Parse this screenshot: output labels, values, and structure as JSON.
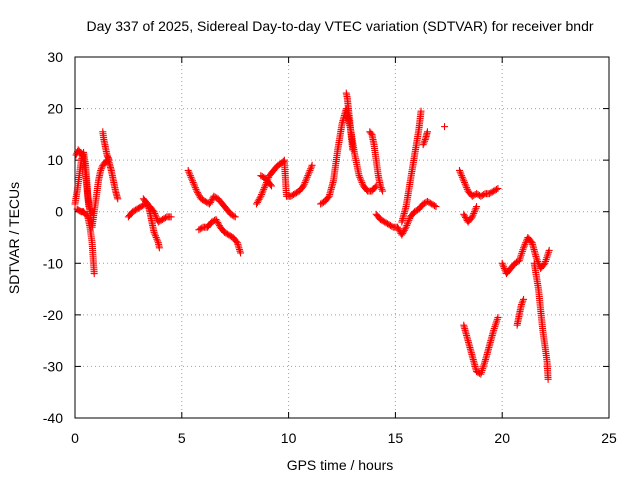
{
  "chart_data": {
    "type": "scatter",
    "title": "Day 337 of 2025, Sidereal Day-to-day VTEC variation (SDTVAR) for receiver bndr",
    "xlabel": "GPS time / hours",
    "ylabel": "SDTVAR / TECUs",
    "xlim": [
      0,
      25
    ],
    "ylim": [
      -40,
      30
    ],
    "xticks": [
      "0",
      "5",
      "10",
      "15",
      "20",
      "25"
    ],
    "yticks": [
      "30",
      "20",
      "10",
      "0",
      "-10",
      "-20",
      "-30",
      "-40"
    ],
    "grid": true,
    "marker": "+",
    "color": "#ff0000",
    "segments": [
      {
        "x": [
          0.0,
          0.1,
          0.2,
          0.3,
          0.4,
          0.5,
          0.6,
          0.7,
          0.8,
          0.9,
          1.0,
          1.1,
          1.2,
          1.3,
          1.4,
          1.5,
          1.6,
          1.7,
          1.8,
          1.9,
          2.0
        ],
        "y": [
          1.5,
          4,
          7,
          10,
          11.5,
          9,
          3,
          0,
          -3,
          0,
          3,
          6,
          8,
          9,
          9.5,
          10,
          9.5,
          8,
          6,
          4,
          2.5
        ]
      },
      {
        "x": [
          0.05,
          0.15,
          0.25,
          0.35,
          0.45,
          0.55,
          0.65,
          0.75,
          0.85
        ],
        "y": [
          11,
          12,
          11.5,
          11,
          9,
          5,
          1,
          0,
          0
        ]
      },
      {
        "x": [
          0.1,
          0.2,
          0.3,
          0.4,
          0.5,
          0.6,
          0.7,
          0.8,
          0.85,
          0.9
        ],
        "y": [
          0.5,
          0.2,
          0,
          0,
          -0.5,
          -1,
          -3,
          -6,
          -9,
          -12
        ]
      },
      {
        "x": [
          1.3,
          1.35,
          1.4,
          1.45,
          1.5,
          1.55,
          1.6
        ],
        "y": [
          15.5,
          14,
          13,
          12,
          11,
          10.5,
          10
        ]
      },
      {
        "x": [
          2.5,
          2.7,
          2.9,
          3.1,
          3.3,
          3.5,
          3.7,
          3.9,
          4.1,
          4.3,
          4.5
        ],
        "y": [
          -1,
          0,
          0.5,
          1,
          1.5,
          1,
          0,
          -2,
          -1.5,
          -1,
          -1
        ]
      },
      {
        "x": [
          3.2,
          3.3,
          3.4,
          3.5,
          3.6,
          3.7,
          3.8,
          3.9,
          3.95
        ],
        "y": [
          2.5,
          2,
          1.5,
          0,
          -2,
          -4,
          -5,
          -6,
          -7
        ]
      },
      {
        "x": [
          5.3,
          5.5,
          5.7,
          5.9,
          6.1,
          6.3,
          6.5,
          6.7,
          6.9,
          7.1,
          7.3,
          7.5
        ],
        "y": [
          8,
          6,
          4,
          2.5,
          2,
          1.5,
          3,
          2.5,
          1.5,
          0.5,
          -0.5,
          -1
        ]
      },
      {
        "x": [
          5.8,
          6.0,
          6.2,
          6.4,
          6.6,
          6.8,
          7.0,
          7.2,
          7.4,
          7.6,
          7.75
        ],
        "y": [
          -3.5,
          -3,
          -3,
          -2,
          -1.5,
          -3,
          -4,
          -4.5,
          -5,
          -6,
          -8
        ]
      },
      {
        "x": [
          8.5,
          8.7,
          8.9,
          9.1,
          9.3,
          9.5,
          9.7,
          9.8,
          9.9,
          10.1,
          10.3,
          10.5,
          10.7,
          10.9,
          11.1
        ],
        "y": [
          1.5,
          3,
          5,
          7,
          8,
          9,
          9.5,
          10,
          3,
          3,
          3.5,
          4,
          5,
          7,
          9
        ]
      },
      {
        "x": [
          8.7,
          8.9,
          9.0,
          9.1,
          9.2
        ],
        "y": [
          7,
          6.5,
          6,
          5.5,
          5
        ]
      },
      {
        "x": [
          11.5,
          11.7,
          11.9,
          12.1,
          12.3,
          12.5,
          12.7,
          12.9,
          13.1,
          13.3,
          13.5,
          13.7,
          13.9,
          14.1
        ],
        "y": [
          1.5,
          2,
          3,
          6,
          12,
          17,
          20,
          16,
          11,
          7,
          5,
          4,
          4,
          5
        ]
      },
      {
        "x": [
          12.7,
          12.75,
          12.8,
          12.85,
          12.9,
          12.95,
          13.0
        ],
        "y": [
          23,
          22,
          20,
          18,
          16,
          14,
          12
        ]
      },
      {
        "x": [
          13.8,
          13.9,
          14.0,
          14.1,
          14.2,
          14.3,
          14.4
        ],
        "y": [
          15.5,
          15,
          13,
          10,
          7,
          5,
          4
        ]
      },
      {
        "x": [
          14.1,
          14.3,
          14.5,
          14.7,
          14.9,
          15.1,
          15.3,
          15.5,
          15.7,
          15.9,
          16.1,
          16.3,
          16.5,
          16.7,
          16.9
        ],
        "y": [
          -0.5,
          -1.5,
          -2,
          -2.5,
          -3,
          -3,
          -4.5,
          -3,
          -1,
          0,
          0.5,
          1.5,
          2,
          1.5,
          1
        ]
      },
      {
        "x": [
          15.3,
          15.5,
          15.7,
          15.9,
          16.1,
          16.2
        ],
        "y": [
          -2,
          1,
          6,
          11,
          16,
          19.5
        ]
      },
      {
        "x": [
          16.3,
          16.4,
          16.5
        ],
        "y": [
          13,
          14,
          15.5
        ]
      },
      {
        "x": [
          17.3
        ],
        "y": [
          16.5
        ]
      },
      {
        "x": [
          18.0,
          18.2,
          18.4,
          18.6,
          18.8,
          19.0,
          19.2,
          19.4,
          19.6,
          19.8
        ],
        "y": [
          8,
          6,
          4,
          3,
          3.5,
          3,
          3.5,
          3.5,
          4,
          4.5
        ]
      },
      {
        "x": [
          18.2,
          18.4,
          18.6,
          18.8
        ],
        "y": [
          -0.5,
          -2,
          -1,
          1
        ]
      },
      {
        "x": [
          18.2,
          18.4,
          18.6,
          18.8,
          19.0,
          19.2,
          19.4,
          19.6,
          19.8
        ],
        "y": [
          -22,
          -25,
          -28,
          -31,
          -31.5,
          -29,
          -26,
          -23,
          -20.5
        ]
      },
      {
        "x": [
          20.0,
          20.2,
          20.4,
          20.6,
          20.8,
          21.0,
          21.2,
          21.4,
          21.6,
          21.8,
          22.0,
          22.2
        ],
        "y": [
          -10,
          -12,
          -11,
          -10,
          -9.5,
          -7,
          -5,
          -6,
          -9,
          -11,
          -10,
          -7.5
        ]
      },
      {
        "x": [
          20.7,
          20.8,
          20.9,
          21.0
        ],
        "y": [
          -22,
          -20,
          -18,
          -17
        ]
      },
      {
        "x": [
          21.5,
          21.7,
          21.8,
          21.9,
          22.0,
          22.1,
          22.15
        ],
        "y": [
          -10,
          -15,
          -19,
          -23,
          -26,
          -29,
          -32.5
        ]
      }
    ]
  }
}
